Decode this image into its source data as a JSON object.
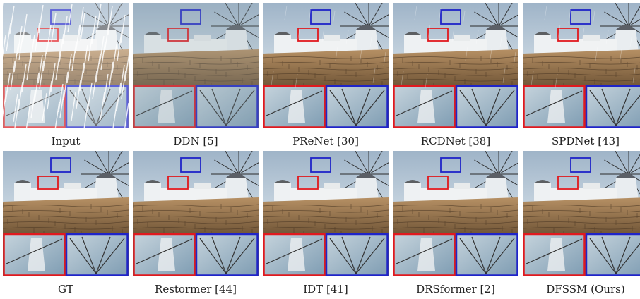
{
  "figure": {
    "row1": [
      {
        "label": "Input",
        "rain": "heavy"
      },
      {
        "label": "DDN [5]",
        "rain": "haze"
      },
      {
        "label": "PReNet [30]",
        "rain": "light"
      },
      {
        "label": "RCDNet [38]",
        "rain": "light"
      },
      {
        "label": "SPDNet [43]",
        "rain": "light"
      }
    ],
    "row2": [
      {
        "label": "GT",
        "rain": "none"
      },
      {
        "label": "Restormer [44]",
        "rain": "none"
      },
      {
        "label": "IDT [41]",
        "rain": "none"
      },
      {
        "label": "DRSformer [2]",
        "rain": "none"
      },
      {
        "label": "DFSSM (Ours)",
        "rain": "none"
      }
    ]
  },
  "colors": {
    "zoom_red": "#e0191e",
    "zoom_blue": "#1f24c8"
  }
}
